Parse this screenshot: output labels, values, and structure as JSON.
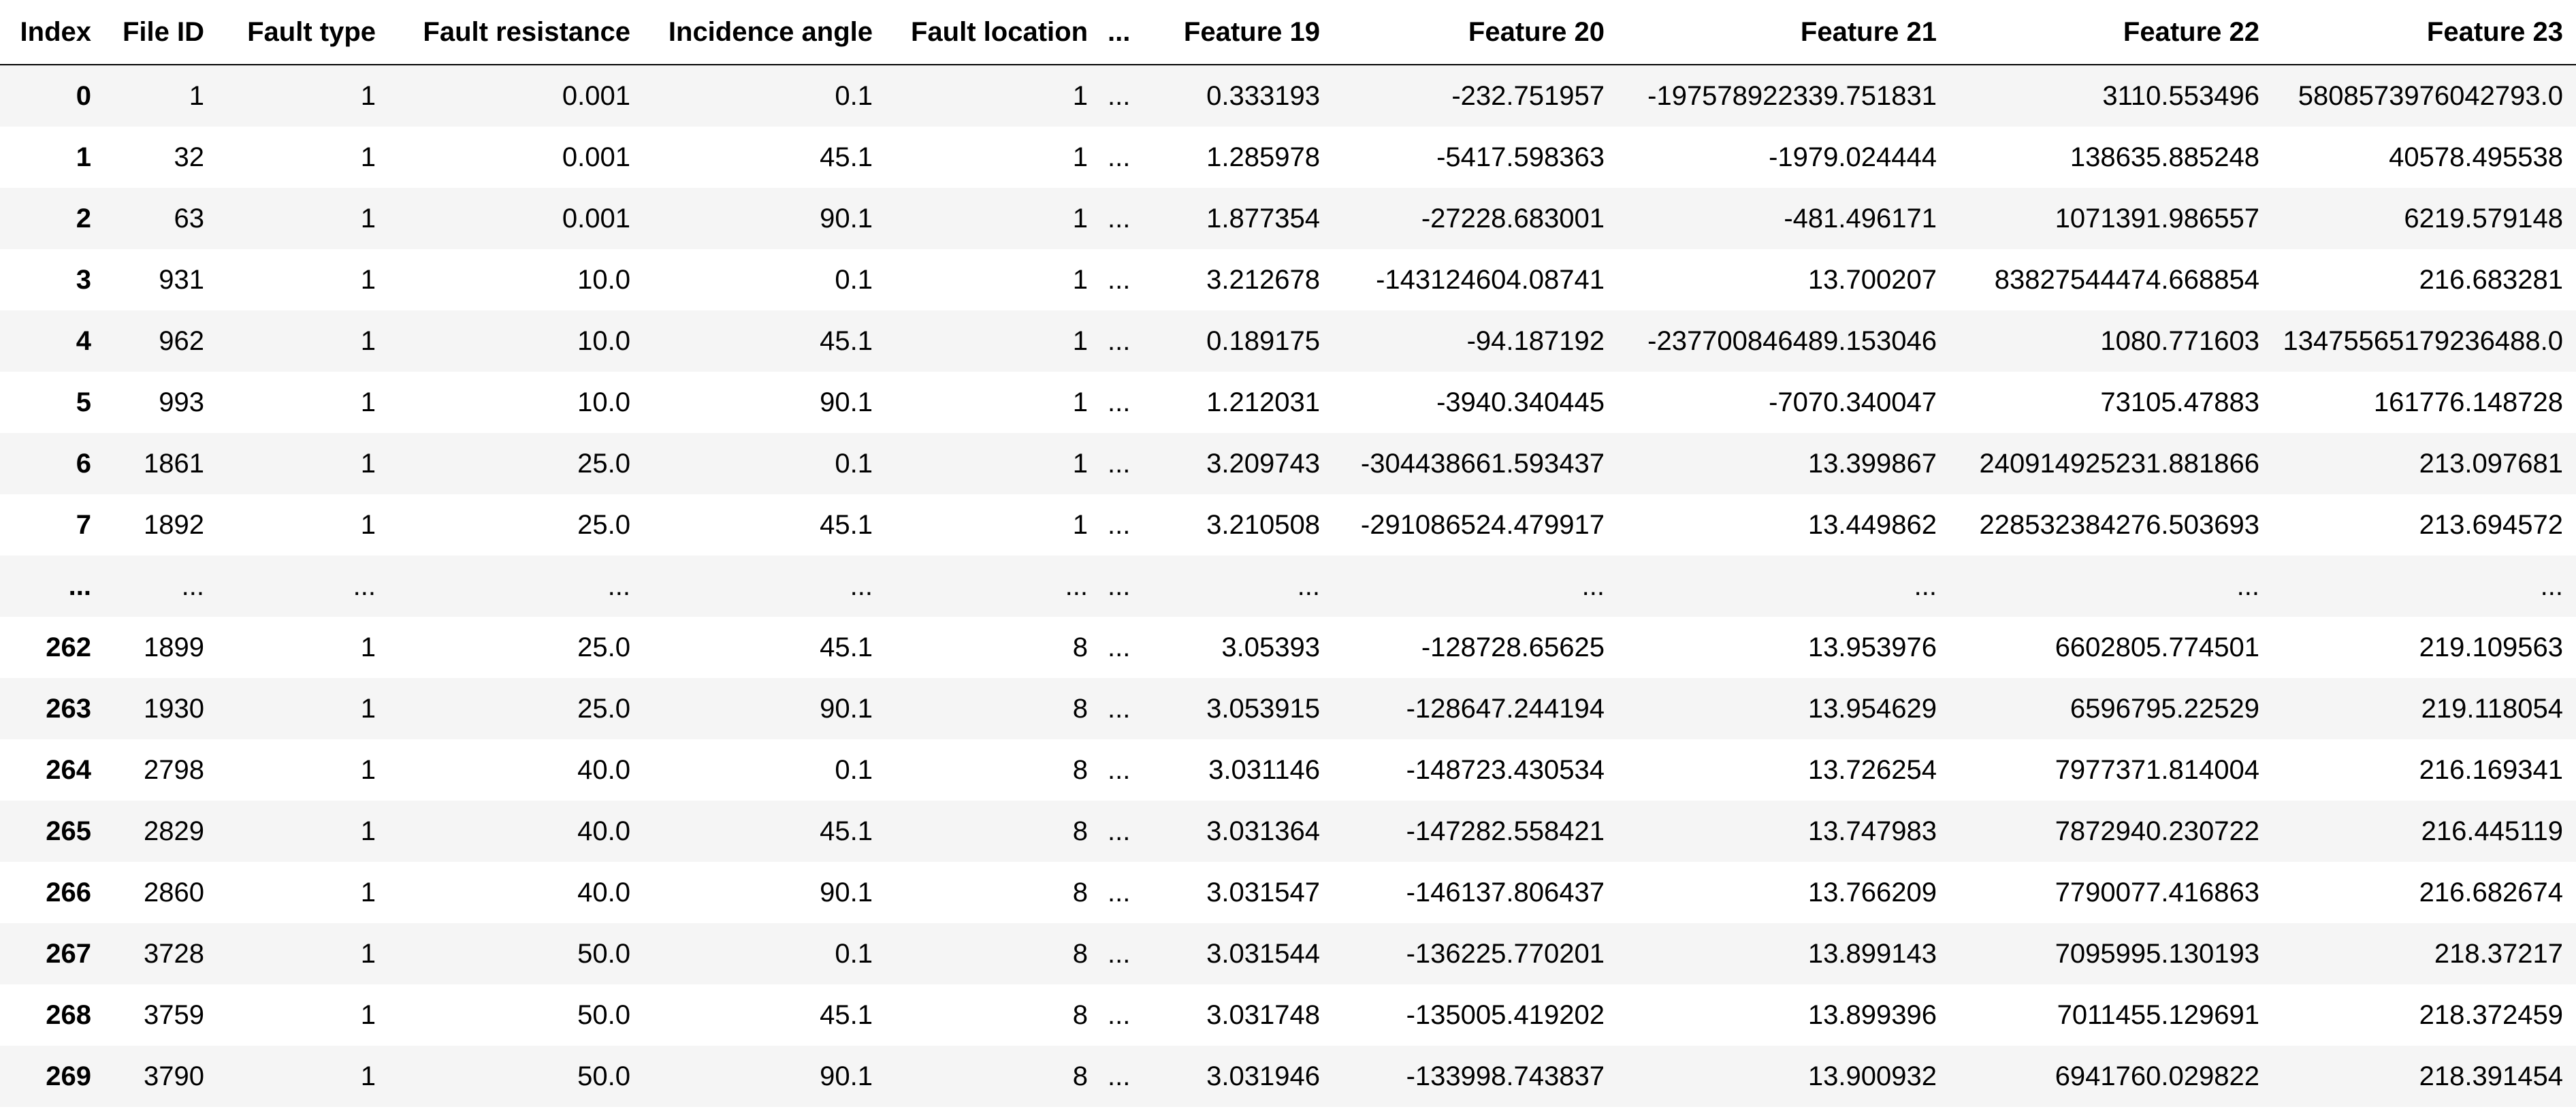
{
  "table": {
    "columns": [
      "Index",
      "File ID",
      "Fault type",
      "Fault resistance",
      "Incidence angle",
      "Fault location",
      "...",
      "Feature 19",
      "Feature 20",
      "Feature 21",
      "Feature 22",
      "Feature 23"
    ],
    "rows": [
      [
        "0",
        "1",
        "1",
        "0.001",
        "0.1",
        "1",
        "...",
        "0.333193",
        "-232.751957",
        "-197578922339.751831",
        "3110.553496",
        "5808573976042793.0"
      ],
      [
        "1",
        "32",
        "1",
        "0.001",
        "45.1",
        "1",
        "...",
        "1.285978",
        "-5417.598363",
        "-1979.024444",
        "138635.885248",
        "40578.495538"
      ],
      [
        "2",
        "63",
        "1",
        "0.001",
        "90.1",
        "1",
        "...",
        "1.877354",
        "-27228.683001",
        "-481.496171",
        "1071391.986557",
        "6219.579148"
      ],
      [
        "3",
        "931",
        "1",
        "10.0",
        "0.1",
        "1",
        "...",
        "3.212678",
        "-143124604.08741",
        "13.700207",
        "83827544474.668854",
        "216.683281"
      ],
      [
        "4",
        "962",
        "1",
        "10.0",
        "45.1",
        "1",
        "...",
        "0.189175",
        "-94.187192",
        "-237700846489.153046",
        "1080.771603",
        "13475565179236488.0"
      ],
      [
        "5",
        "993",
        "1",
        "10.0",
        "90.1",
        "1",
        "...",
        "1.212031",
        "-3940.340445",
        "-7070.340047",
        "73105.47883",
        "161776.148728"
      ],
      [
        "6",
        "1861",
        "1",
        "25.0",
        "0.1",
        "1",
        "...",
        "3.209743",
        "-304438661.593437",
        "13.399867",
        "240914925231.881866",
        "213.097681"
      ],
      [
        "7",
        "1892",
        "1",
        "25.0",
        "45.1",
        "1",
        "...",
        "3.210508",
        "-291086524.479917",
        "13.449862",
        "228532384276.503693",
        "213.694572"
      ],
      [
        "...",
        "...",
        "...",
        "...",
        "...",
        "...",
        "...",
        "...",
        "...",
        "...",
        "...",
        "..."
      ],
      [
        "262",
        "1899",
        "1",
        "25.0",
        "45.1",
        "8",
        "...",
        "3.05393",
        "-128728.65625",
        "13.953976",
        "6602805.774501",
        "219.109563"
      ],
      [
        "263",
        "1930",
        "1",
        "25.0",
        "90.1",
        "8",
        "...",
        "3.053915",
        "-128647.244194",
        "13.954629",
        "6596795.22529",
        "219.118054"
      ],
      [
        "264",
        "2798",
        "1",
        "40.0",
        "0.1",
        "8",
        "...",
        "3.031146",
        "-148723.430534",
        "13.726254",
        "7977371.814004",
        "216.169341"
      ],
      [
        "265",
        "2829",
        "1",
        "40.0",
        "45.1",
        "8",
        "...",
        "3.031364",
        "-147282.558421",
        "13.747983",
        "7872940.230722",
        "216.445119"
      ],
      [
        "266",
        "2860",
        "1",
        "40.0",
        "90.1",
        "8",
        "...",
        "3.031547",
        "-146137.806437",
        "13.766209",
        "7790077.416863",
        "216.682674"
      ],
      [
        "267",
        "3728",
        "1",
        "50.0",
        "0.1",
        "8",
        "...",
        "3.031544",
        "-136225.770201",
        "13.899143",
        "7095995.130193",
        "218.37217"
      ],
      [
        "268",
        "3759",
        "1",
        "50.0",
        "45.1",
        "8",
        "...",
        "3.031748",
        "-135005.419202",
        "13.899396",
        "7011455.129691",
        "218.372459"
      ],
      [
        "269",
        "3790",
        "1",
        "50.0",
        "90.1",
        "8",
        "...",
        "3.031946",
        "-133998.743837",
        "13.900932",
        "6941760.029822",
        "218.391454"
      ]
    ]
  }
}
